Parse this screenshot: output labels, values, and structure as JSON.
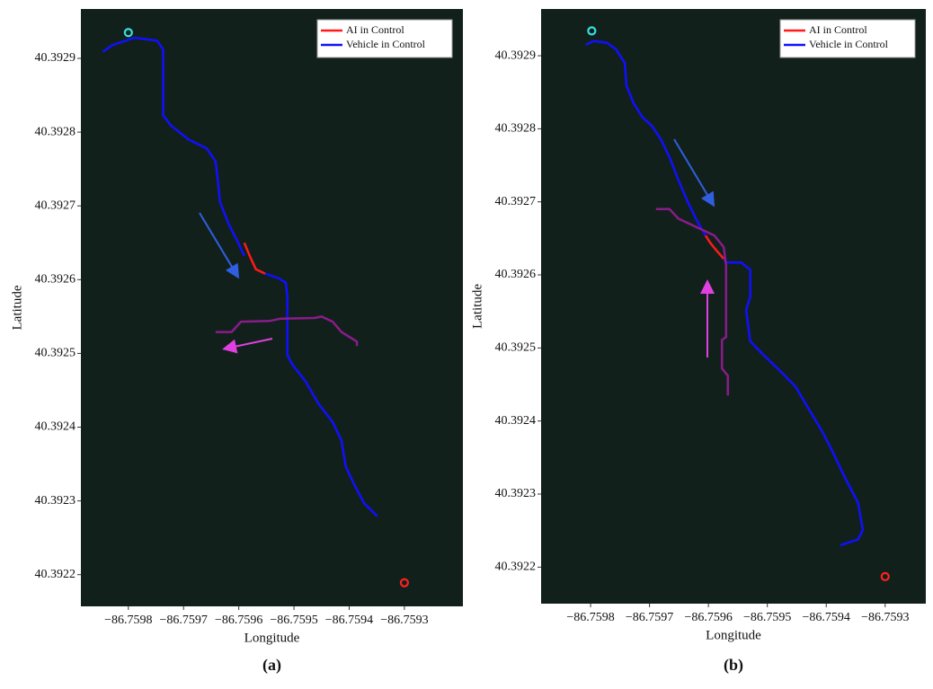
{
  "chart_data": [
    {
      "type": "line",
      "label": "(a)",
      "x_label": "Longitude",
      "y_label": "Latitude",
      "xlim": [
        -86.759886,
        -86.759194
      ],
      "ylim": [
        40.392157,
        40.392967
      ],
      "xticks": [
        {
          "value": -86.7598,
          "label": "−86.7598"
        },
        {
          "value": -86.7597,
          "label": "−86.7597"
        },
        {
          "value": -86.7596,
          "label": "−86.7596"
        },
        {
          "value": -86.7595,
          "label": "−86.7595"
        },
        {
          "value": -86.7594,
          "label": "−86.7594"
        },
        {
          "value": -86.7593,
          "label": "−86.7593"
        }
      ],
      "yticks": [
        40.3922,
        40.3923,
        40.3924,
        40.3925,
        40.3926,
        40.3927,
        40.3928,
        40.3929
      ],
      "legend": "upper right",
      "series": [
        {
          "name": "AI in Control",
          "color": "#ff1a1a",
          "x": [
            -86.75959,
            -86.75958,
            -86.759569,
            -86.759552
          ],
          "values": [
            40.39265,
            40.392632,
            40.392614,
            40.392608
          ]
        },
        {
          "name": "Vehicle in Control",
          "color": "#1010ff",
          "x": [
            -86.759846,
            -86.759829,
            -86.759789,
            -86.759748,
            -86.759737,
            -86.759737,
            -86.759723,
            -86.759691,
            -86.759658,
            -86.759642,
            -86.759639,
            -86.759634,
            -86.759618,
            -86.759601,
            -86.75959,
            null,
            -86.759552,
            -86.759528,
            -86.759515,
            -86.759512,
            -86.759512,
            -86.759512,
            -86.759504,
            -86.759479,
            -86.759455,
            -86.75943,
            -86.759414,
            -86.759406,
            -86.75939,
            -86.759373,
            -86.759349
          ],
          "values": [
            40.392909,
            40.392918,
            40.392928,
            40.392924,
            40.392912,
            40.392823,
            40.392809,
            40.39279,
            40.392778,
            40.39276,
            40.392742,
            40.392705,
            40.392675,
            40.39265,
            40.392632,
            null,
            40.392608,
            40.392602,
            40.392596,
            40.392577,
            40.392541,
            40.392498,
            40.392486,
            40.392462,
            40.392431,
            40.392407,
            40.392382,
            40.392346,
            40.392321,
            40.392297,
            40.392279
          ]
        },
        {
          "color": "#8a1c8a",
          "x": [
            -86.759642,
            -86.759613,
            -86.759596,
            -86.759544,
            -86.759525,
            -86.759463,
            -86.75945,
            -86.75943,
            -86.759414,
            -86.759386,
            -86.759386
          ],
          "values": [
            40.392529,
            40.392529,
            40.392543,
            40.392544,
            40.392547,
            40.392548,
            40.39255,
            40.392543,
            40.392529,
            40.392516,
            40.39251
          ]
        },
        {
          "color": "#33e0e0",
          "marker": "circle",
          "x": [
            -86.7598
          ],
          "values": [
            40.392935
          ]
        },
        {
          "color": "#ff2020",
          "marker": "circle",
          "x": [
            -86.7593
          ],
          "values": [
            40.392189
          ]
        }
      ]
    },
    {
      "type": "line",
      "label": "(b)",
      "x_label": "Longitude",
      "y_label": "Latitude",
      "xlim": [
        -86.759884,
        -86.759231
      ],
      "ylim": [
        40.39215,
        40.392964
      ],
      "xticks": [
        {
          "value": -86.7598,
          "label": "−86.7598"
        },
        {
          "value": -86.7597,
          "label": "−86.7597"
        },
        {
          "value": -86.7596,
          "label": "−86.7596"
        },
        {
          "value": -86.7595,
          "label": "−86.7595"
        },
        {
          "value": -86.7594,
          "label": "−86.7594"
        },
        {
          "value": -86.7593,
          "label": "−86.7593"
        }
      ],
      "yticks": [
        40.3922,
        40.3923,
        40.3924,
        40.3925,
        40.3926,
        40.3927,
        40.3928,
        40.3929
      ],
      "legend": "upper right",
      "series": [
        {
          "name": "AI in Control",
          "color": "#ff1a1a",
          "x": [
            -86.759605,
            -86.759597,
            -86.759587,
            -86.759574
          ],
          "values": [
            40.392654,
            40.392644,
            40.392634,
            40.392622
          ]
        },
        {
          "name": "Vehicle in Control",
          "color": "#1010ff",
          "x": [
            -86.759808,
            -86.759795,
            -86.759773,
            -86.759757,
            -86.759742,
            -86.759739,
            -86.759727,
            -86.759712,
            -86.759696,
            -86.759681,
            -86.759666,
            -86.759651,
            -86.759635,
            -86.75962,
            -86.759605,
            null,
            -86.759574,
            -86.75957,
            -86.759544,
            -86.759529,
            -86.759529,
            -86.759536,
            -86.759529,
            -86.759506,
            -86.759475,
            -86.759452,
            -86.75943,
            -86.759407,
            -86.759391,
            -86.759369,
            -86.759346,
            -86.759338,
            -86.759346,
            -86.759376
          ],
          "values": [
            40.392915,
            40.39292,
            40.392918,
            40.392909,
            40.39289,
            40.392859,
            40.392835,
            40.392816,
            40.392804,
            40.392786,
            40.392761,
            40.39273,
            40.3927,
            40.392675,
            40.392654,
            null,
            40.392622,
            40.392617,
            40.392617,
            40.392607,
            40.39257,
            40.392552,
            40.392509,
            40.39249,
            40.392466,
            40.392447,
            40.392417,
            40.392386,
            40.392361,
            40.392324,
            40.392288,
            40.392251,
            40.392238,
            40.39223
          ]
        },
        {
          "color": "#8a1c8a",
          "x": [
            -86.759689,
            -86.759666,
            -86.759651,
            -86.75959,
            -86.759574,
            -86.75957,
            -86.75957,
            -86.759577,
            -86.759577,
            -86.759567,
            -86.759567
          ],
          "values": [
            40.39269,
            40.39269,
            40.392677,
            40.392654,
            40.392638,
            40.392613,
            40.392515,
            40.392511,
            40.392472,
            40.392462,
            40.392435
          ]
        },
        {
          "color": "#33e0e0",
          "marker": "circle",
          "x": [
            -86.759798
          ],
          "values": [
            40.392934
          ]
        },
        {
          "color": "#ff2020",
          "marker": "circle",
          "x": [
            -86.7593
          ],
          "values": [
            40.392187
          ]
        }
      ]
    }
  ]
}
